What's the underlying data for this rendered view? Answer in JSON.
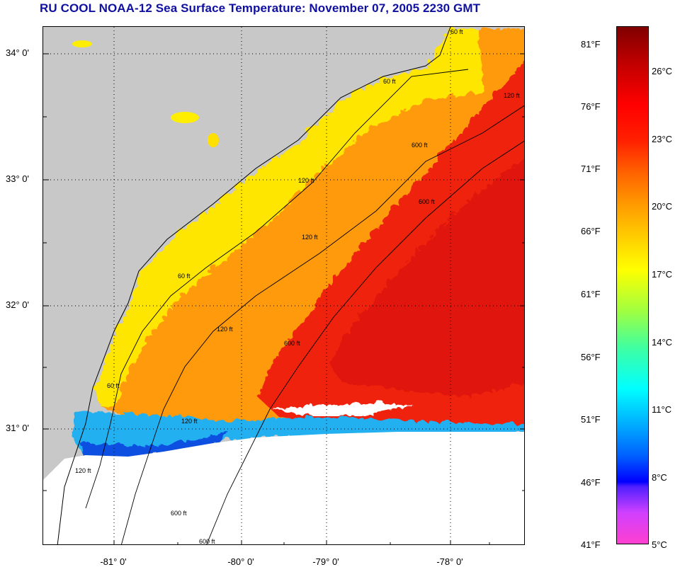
{
  "title": "RU COOL  NOAA-12  Sea Surface Temperature:  November 07, 2005 2230 GMT",
  "map": {
    "lat_labels": [
      "34° 0'",
      "33° 0'",
      "32° 0'",
      "31° 0'"
    ],
    "lon_labels": [
      "-81° 0'",
      "-80° 0'",
      "-79° 0'",
      "-78° 0'"
    ],
    "contour_labels": [
      "60 ft",
      "60 ft",
      "60 ft",
      "60 ft",
      "120 ft",
      "120 ft",
      "120 ft",
      "120 ft",
      "600 ft",
      "600 ft",
      "600 ft",
      "600 ft",
      "600 ft",
      "120 ft",
      "120 ft"
    ],
    "colors": {
      "land": "#c8c8c8",
      "no_data": "#ffffff",
      "nearshore": "#ffee00",
      "midshelf": "#ff9a10",
      "gulf_stream": "#ee2010",
      "cold": "#20b0f0"
    }
  },
  "colorbar": {
    "fahrenheit": [
      "81°F",
      "76°F",
      "71°F",
      "66°F",
      "61°F",
      "56°F",
      "51°F",
      "46°F",
      "41°F"
    ],
    "celsius": [
      "26°C",
      "23°C",
      "20°C",
      "17°C",
      "14°C",
      "11°C",
      "8°C",
      "5°C"
    ]
  }
}
